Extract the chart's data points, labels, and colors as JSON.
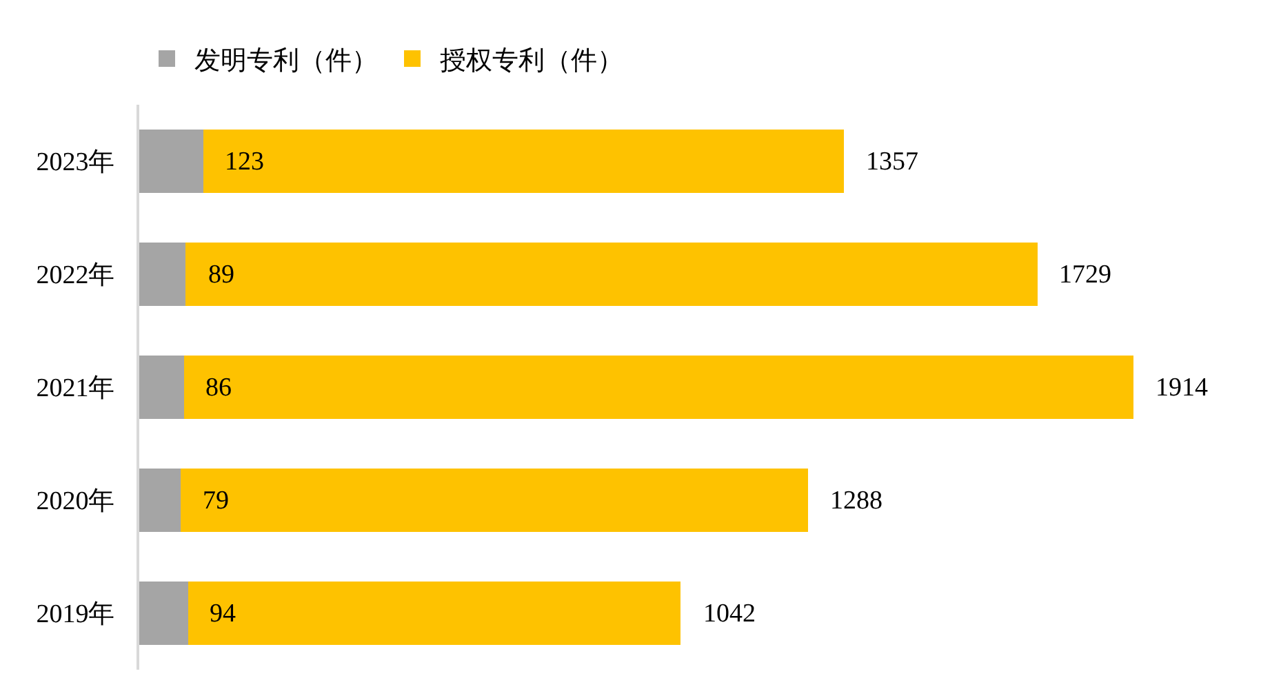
{
  "chart_data": {
    "type": "bar",
    "orientation": "horizontal",
    "stacked": true,
    "categories": [
      "2023年",
      "2022年",
      "2021年",
      "2020年",
      "2019年"
    ],
    "series": [
      {
        "name": "发明专利（件）",
        "color": "#a5a5a5",
        "values": [
          123,
          89,
          86,
          79,
          94
        ],
        "value_labels": [
          "123",
          "89",
          "86",
          "79",
          "94"
        ]
      },
      {
        "name": "授权专利（件）",
        "color": "#fec200",
        "values": [
          1234,
          1640,
          1828,
          1209,
          948
        ]
      }
    ],
    "totals": [
      "1357",
      "1729",
      "1914",
      "1288",
      "1042"
    ],
    "legend": "top left",
    "tick_labels": "y"
  }
}
